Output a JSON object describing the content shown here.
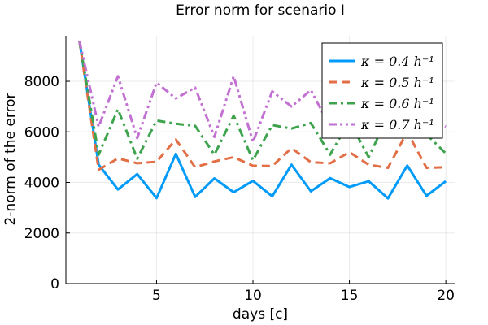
{
  "chart_data": {
    "type": "line",
    "title": "Error norm for scenario I",
    "xlabel": "days [c]",
    "ylabel": "2-norm of the error",
    "xlim": [
      0.3,
      20.5
    ],
    "ylim": [
      0,
      9800
    ],
    "xticks": [
      5,
      10,
      15,
      20
    ],
    "yticks": [
      0,
      2000,
      4000,
      6000,
      8000
    ],
    "grid": true,
    "legend_position": "top-right",
    "x": [
      1,
      2,
      3,
      4,
      5,
      6,
      7,
      8,
      9,
      10,
      11,
      12,
      13,
      14,
      15,
      16,
      17,
      18,
      19,
      20
    ],
    "series": [
      {
        "name": "κ = 0.4 h⁻¹",
        "color": "#009af9",
        "dash": "solid",
        "values": [
          9600,
          4700,
          3720,
          4330,
          3380,
          5130,
          3430,
          4160,
          3610,
          4060,
          3450,
          4700,
          3650,
          4170,
          3820,
          4050,
          3370,
          4670,
          3470,
          4050
        ]
      },
      {
        "name": "κ = 0.5 h⁻¹",
        "color": "#e26f46",
        "dash": "dash",
        "values": [
          9600,
          4500,
          4950,
          4760,
          4820,
          5700,
          4600,
          4830,
          5000,
          4660,
          4650,
          5360,
          4800,
          4760,
          5200,
          4700,
          4580,
          6000,
          4580,
          4600
        ]
      },
      {
        "name": "κ = 0.6 h⁻¹",
        "color": "#3da44d",
        "dash": "dashdot",
        "values": [
          9600,
          5100,
          6900,
          4940,
          6450,
          6320,
          6240,
          5100,
          6640,
          4880,
          6270,
          6130,
          6350,
          5100,
          6430,
          5000,
          6620,
          6150,
          5900,
          5150
        ]
      },
      {
        "name": "κ = 0.7 h⁻¹",
        "color": "#c271d2",
        "dash": "dashdotdot",
        "values": [
          9600,
          6200,
          8200,
          5750,
          7950,
          7320,
          7750,
          5800,
          8200,
          5600,
          7600,
          7000,
          7650,
          6200,
          8000,
          6500,
          7600,
          6200,
          6650,
          6200
        ]
      }
    ]
  }
}
